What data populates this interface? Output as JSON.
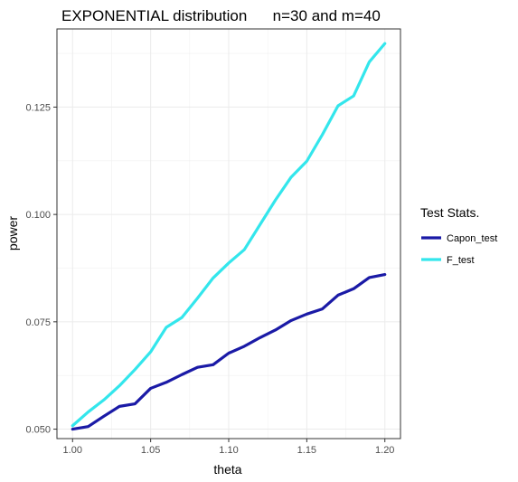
{
  "chart_data": {
    "type": "line",
    "title": "EXPONENTIAL distribution      n=30 and m=40",
    "xlabel": "theta",
    "ylabel": "power",
    "xlim": [
      0.99,
      1.21
    ],
    "ylim": [
      0.0478,
      0.1432
    ],
    "xticks": [
      1.0,
      1.05,
      1.1,
      1.15,
      1.2
    ],
    "xtick_labels": [
      "1.00",
      "1.05",
      "1.10",
      "1.15",
      "1.20"
    ],
    "yticks": [
      0.05,
      0.075,
      0.1,
      0.125
    ],
    "ytick_labels": [
      "0.050",
      "0.075",
      "0.100",
      "0.125"
    ],
    "grid": true,
    "legend": {
      "title": "Test Stats.",
      "position": "right"
    },
    "x": [
      1.0,
      1.01,
      1.02,
      1.03,
      1.04,
      1.05,
      1.06,
      1.07,
      1.08,
      1.09,
      1.1,
      1.11,
      1.12,
      1.13,
      1.14,
      1.15,
      1.16,
      1.17,
      1.18,
      1.19,
      1.2
    ],
    "series": [
      {
        "name": "Capon_test",
        "color": "#1a1aa6",
        "values": [
          0.05,
          0.0506,
          0.053,
          0.0553,
          0.0559,
          0.0595,
          0.0609,
          0.0627,
          0.0644,
          0.065,
          0.0677,
          0.0693,
          0.0713,
          0.0731,
          0.0753,
          0.0768,
          0.078,
          0.0812,
          0.0827,
          0.0853,
          0.086
        ]
      },
      {
        "name": "F_test",
        "color": "#33e6ec",
        "values": [
          0.0508,
          0.054,
          0.0568,
          0.0601,
          0.0639,
          0.068,
          0.0737,
          0.076,
          0.0805,
          0.0852,
          0.0887,
          0.0918,
          0.0976,
          0.1034,
          0.1087,
          0.1124,
          0.1186,
          0.1253,
          0.1276,
          0.1355,
          0.1398
        ]
      }
    ]
  }
}
